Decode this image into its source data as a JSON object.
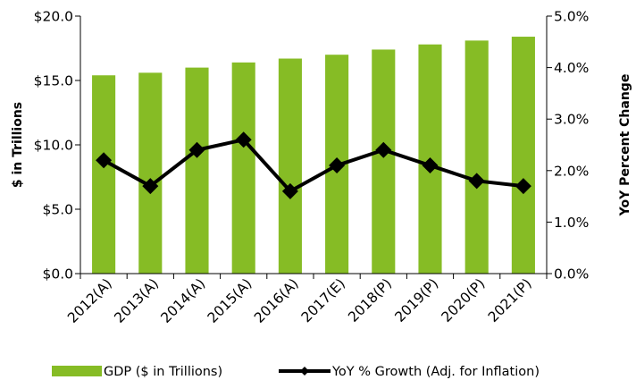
{
  "chart_data": {
    "type": "bar",
    "categories": [
      "2012(A)",
      "2013(A)",
      "2014(A)",
      "2015(A)",
      "2016(A)",
      "2017(E)",
      "2018(P)",
      "2019(P)",
      "2020(P)",
      "2021(P)"
    ],
    "series": [
      {
        "name": "GDP ($ in Trillions)",
        "type": "bar",
        "axis": "left",
        "color": "#86BC25",
        "values": [
          15.4,
          15.6,
          16.0,
          16.4,
          16.7,
          17.0,
          17.4,
          17.8,
          18.1,
          18.4
        ]
      },
      {
        "name": "YoY % Growth (Adj. for Inflation)",
        "type": "line",
        "axis": "right",
        "color": "#000000",
        "marker": "diamond",
        "values": [
          2.2,
          1.7,
          2.4,
          2.6,
          1.6,
          2.1,
          2.4,
          2.1,
          1.8,
          1.7
        ]
      }
    ],
    "y_left": {
      "label": "$ in Trillions",
      "ylim": [
        0,
        20
      ],
      "ticks": [
        0,
        5,
        10,
        15,
        20
      ],
      "tick_labels": [
        "$0.0",
        "$5.0",
        "$10.0",
        "$15.0",
        "$20.0"
      ]
    },
    "y_right": {
      "label": "YoY Percent Change",
      "ylim": [
        0,
        5
      ],
      "ticks": [
        0,
        1,
        2,
        3,
        4,
        5
      ],
      "tick_labels": [
        "0.0%",
        "1.0%",
        "2.0%",
        "3.0%",
        "4.0%",
        "5.0%"
      ]
    },
    "grid": false,
    "legend": "bottom"
  }
}
